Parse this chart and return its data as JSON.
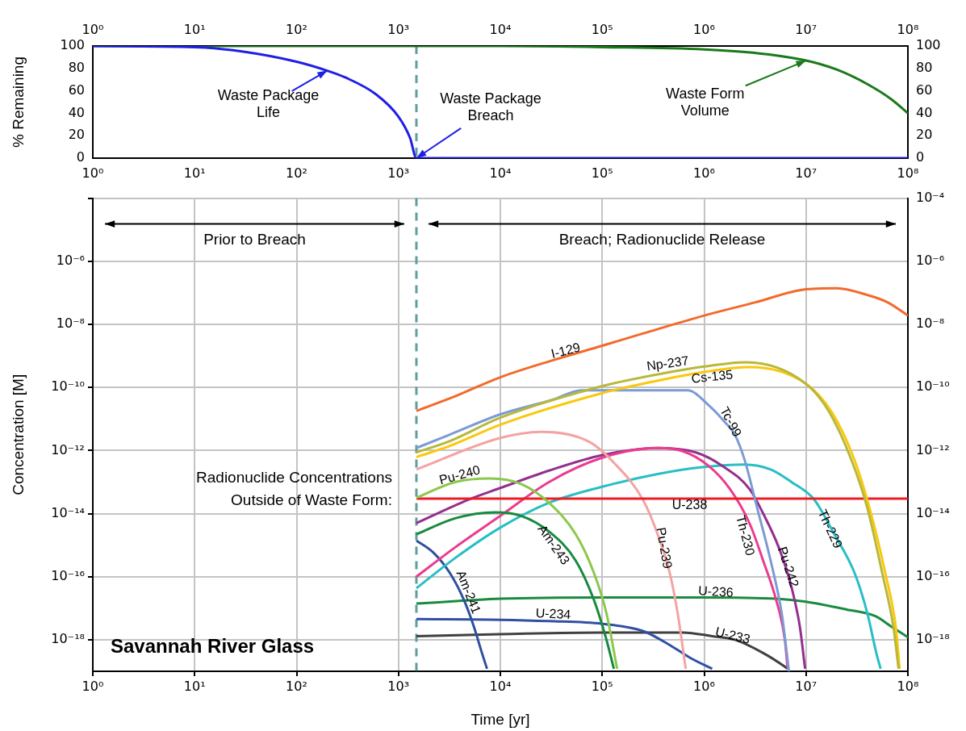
{
  "chart_data": [
    {
      "type": "line",
      "ylabel": "% Remaining",
      "log": "x",
      "grid": false,
      "legend": false,
      "marker": "none",
      "xlim": [
        1,
        100000000
      ],
      "xticks": [
        {
          "value": 1,
          "label": "10⁰"
        },
        {
          "value": 10,
          "label": "10¹"
        },
        {
          "value": 100,
          "label": "10²"
        },
        {
          "value": 1000,
          "label": "10³"
        },
        {
          "value": 10000,
          "label": "10⁴"
        },
        {
          "value": 100000,
          "label": "10⁵"
        },
        {
          "value": 1000000,
          "label": "10⁶"
        },
        {
          "value": 10000000,
          "label": "10⁷"
        },
        {
          "value": 100000000,
          "label": "10⁸"
        }
      ],
      "ylim": [
        0,
        100
      ],
      "yticks": [
        0,
        20,
        40,
        60,
        80,
        100
      ],
      "y2lim": [
        0,
        100
      ],
      "y2ticks": [
        0,
        20,
        40,
        60,
        80,
        100
      ],
      "series": [
        {
          "color": "#1f1fe6",
          "x": [
            1,
            10,
            30,
            100,
            200,
            300,
            600,
            1000,
            1300,
            1500,
            100000000
          ],
          "values": [
            100,
            99,
            95,
            86,
            78,
            72,
            57,
            37,
            18,
            0,
            0
          ]
        },
        {
          "color": "#1a7a1a",
          "x": [
            1,
            10000,
            100000,
            1000000,
            3000000,
            10000000,
            20000000,
            40000000,
            70000000,
            100000000
          ],
          "values": [
            100,
            100,
            99,
            97,
            94,
            87,
            79,
            66,
            52,
            40
          ]
        }
      ],
      "ref_lines": [
        {
          "axis": "x",
          "value": 1500,
          "color": "#5f9ea0",
          "line_style": "dashed"
        }
      ],
      "annotations": [
        {
          "text": "Waste Package Life",
          "x": 200,
          "y": 78
        },
        {
          "text": "Waste Package Breach",
          "x": 1500,
          "y": 0
        },
        {
          "text": "Waste Form Volume",
          "x": 10000000,
          "y": 87
        }
      ]
    },
    {
      "type": "line",
      "xlabel": "Time [yr]",
      "ylabel": "Concentration [M]",
      "log": "xy",
      "grid": true,
      "legend": false,
      "marker": "none",
      "xlim": [
        1,
        100000000
      ],
      "xticks": [
        {
          "value": 1,
          "label": "10⁰"
        },
        {
          "value": 10,
          "label": "10¹"
        },
        {
          "value": 100,
          "label": "10²"
        },
        {
          "value": 1000,
          "label": "10³"
        },
        {
          "value": 10000,
          "label": "10⁴"
        },
        {
          "value": 100000,
          "label": "10⁵"
        },
        {
          "value": 1000000,
          "label": "10⁶"
        },
        {
          "value": 10000000,
          "label": "10⁷"
        },
        {
          "value": 100000000,
          "label": "10⁸"
        }
      ],
      "ylim": [
        1e-19,
        0.0001
      ],
      "yticks": [
        {
          "value": 1e-18,
          "label": "10⁻¹⁸"
        },
        {
          "value": 1e-16,
          "label": "10⁻¹⁶"
        },
        {
          "value": 1e-14,
          "label": "10⁻¹⁴"
        },
        {
          "value": 1e-12,
          "label": "10⁻¹²"
        },
        {
          "value": 1e-10,
          "label": "10⁻¹⁰"
        },
        {
          "value": 1e-08,
          "label": "10⁻⁸"
        },
        {
          "value": 1e-06,
          "label": "10⁻⁶"
        },
        {
          "value": 0.0001,
          "label": "10⁻⁴"
        }
      ],
      "series": [
        {
          "name": "I-129",
          "color": "#f26a2c",
          "x": [
            1500,
            3200,
            10000,
            32000,
            100000,
            250000,
            1000000,
            3200000,
            10000000,
            20000000,
            40000000,
            63000000,
            100000000
          ],
          "values": [
            1.8e-11,
            4.5e-11,
            2.1e-10,
            7.1e-10,
            2.1e-09,
            5.1e-09,
            1.9e-08,
            5e-08,
            1.3e-07,
            1.4e-07,
            8.5e-08,
            5e-08,
            1.9e-08
          ]
        },
        {
          "name": "Np-237",
          "color": "#b8b83a",
          "x": [
            1500,
            3200,
            10000,
            100000,
            250000,
            1000000,
            2600000,
            10000000,
            17000000,
            28000000,
            40000000,
            56000000,
            72000000,
            81000000
          ],
          "values": [
            8.7e-13,
            2e-12,
            1.1e-11,
            1.1e-10,
            2.1e-10,
            4.6e-10,
            6.3e-10,
            1.3e-10,
            1.6e-11,
            4.9e-13,
            1.5e-14,
            1.3e-16,
            2.6e-18,
            1.2e-19
          ]
        },
        {
          "name": "Cs-135",
          "color": "#f9c80e",
          "x": [
            1500,
            3200,
            10000,
            100000,
            250000,
            1000000,
            2800000,
            10000000,
            18000000,
            30000000,
            42000000,
            60000000,
            76000000,
            83000000
          ],
          "values": [
            6.2e-13,
            1.4e-12,
            6.6e-12,
            6.6e-11,
            1.3e-10,
            3.1e-10,
            4.4e-10,
            1.3e-10,
            1.6e-11,
            4.9e-13,
            1.5e-14,
            1.3e-16,
            2.6e-18,
            1.2e-19
          ]
        },
        {
          "name": "Tc-99",
          "color": "#7b9bd4",
          "x": [
            1500,
            3200,
            10000,
            32000,
            63000,
            690000,
            1100000,
            1600000,
            2000000,
            2500000,
            3300000,
            4500000,
            5800000,
            6800000
          ],
          "values": [
            1.2e-12,
            3.2e-12,
            1.4e-11,
            4e-11,
            8.1e-11,
            8.1e-11,
            2.8e-11,
            7.9e-12,
            3.2e-12,
            5e-13,
            1.6e-14,
            3.2e-16,
            6.3e-18,
            1e-19
          ]
        },
        {
          "name": "Pu-240",
          "color": "#8cc84b",
          "x": [
            1500,
            3600,
            7900,
            16000,
            30000,
            55000,
            83000,
            110000,
            140000
          ],
          "values": [
            3.2e-14,
            1e-13,
            1.3e-13,
            8.7e-14,
            2.2e-14,
            2.2e-15,
            1.3e-16,
            6.9e-18,
            1.2e-19
          ]
        },
        {
          "name": "U-238",
          "color": "#ed1c24",
          "x": [
            1500,
            100000000
          ],
          "values": [
            3e-14,
            3e-14
          ]
        },
        {
          "name": "Am-243",
          "color": "#178a3e",
          "x": [
            1500,
            3600,
            8900,
            16000,
            30000,
            55000,
            83000,
            110000,
            130000
          ],
          "values": [
            2.2e-15,
            7.1e-15,
            1.1e-14,
            8.5e-15,
            2.7e-15,
            3.2e-16,
            1.8e-17,
            1e-18,
            1.2e-19
          ]
        },
        {
          "name": "Pu-239",
          "color": "#f4a3a3",
          "x": [
            1500,
            10000,
            25000,
            74000,
            130000,
            250000,
            350000,
            460000,
            550000,
            660000
          ],
          "values": [
            2.5e-13,
            2.5e-12,
            3.9e-12,
            1.9e-12,
            4.1e-13,
            2.8e-14,
            2.2e-15,
            1.3e-16,
            6.9e-18,
            1.2e-19
          ]
        },
        {
          "name": "Th-230",
          "color": "#ec3b8f",
          "x": [
            1500,
            3600,
            10000,
            30000,
            100000,
            350000,
            620000,
            1100000,
            1800000,
            2800000,
            3800000,
            5100000,
            6200000,
            6600000
          ],
          "values": [
            1e-16,
            8.5e-16,
            8.5e-15,
            1e-13,
            5.9e-13,
            1.2e-12,
            9.5e-13,
            3.3e-13,
            5.9e-14,
            4.8e-15,
            3.2e-16,
            1.8e-17,
            1e-18,
            1.2e-19
          ]
        },
        {
          "name": "Pu-242",
          "color": "#93308f",
          "x": [
            1500,
            4900,
            10000,
            30000,
            100000,
            350000,
            830000,
            1500000,
            2800000,
            3800000,
            5400000,
            7200000,
            8700000,
            9800000
          ],
          "values": [
            5e-15,
            2.8e-14,
            6.5e-14,
            2.3e-13,
            7.2e-13,
            1.2e-12,
            8.7e-13,
            3.3e-13,
            5.9e-14,
            1e-14,
            8.5e-16,
            4.7e-17,
            2.6e-18,
            1.2e-19
          ]
        },
        {
          "name": "Th-229",
          "color": "#28bec5",
          "x": [
            1500,
            3600,
            10000,
            30000,
            100000,
            350000,
            1000000,
            2500000,
            4500000,
            7200000,
            12000000,
            19000000,
            30000000,
            40000000,
            49000000,
            54000000
          ],
          "values": [
            4.3e-17,
            3.9e-16,
            3.6e-15,
            2.2e-14,
            7.1e-14,
            1.8e-13,
            3e-13,
            3.6e-13,
            2.5e-13,
            1e-13,
            2.8e-14,
            2.2e-15,
            1.3e-16,
            6.9e-18,
            3.8e-19,
            1.2e-19
          ]
        },
        {
          "name": "Am-241",
          "color": "#2f4f9f",
          "x": [
            1500,
            2200,
            3200,
            4400,
            5500,
            6600,
            7400
          ],
          "values": [
            1.4e-15,
            5.8e-16,
            1.3e-16,
            1.8e-17,
            2.6e-18,
            3.8e-19,
            1.2e-19
          ]
        },
        {
          "name": "U-236",
          "color": "#1a8a40",
          "x": [
            1500,
            10000,
            100000,
            1000000,
            5100000,
            10000000,
            25000000,
            48000000,
            69000000,
            100000000
          ],
          "values": [
            1.4e-17,
            2e-17,
            2.2e-17,
            2.2e-17,
            2e-17,
            1.6e-17,
            9.1e-18,
            5.6e-18,
            2.6e-18,
            1.2e-18
          ]
        },
        {
          "name": "U-234",
          "color": "#3150a5",
          "x": [
            1500,
            10000,
            30000,
            100000,
            250000,
            460000,
            740000,
            1200000
          ],
          "values": [
            4.5e-18,
            4.3e-18,
            3.9e-18,
            3.2e-18,
            1.9e-18,
            6.8e-19,
            2.6e-19,
            1.2e-19
          ]
        },
        {
          "name": "U-233",
          "color": "#404040",
          "x": [
            1500,
            10000,
            100000,
            620000,
            1200000,
            2000000,
            3800000,
            6200000,
            6600000
          ],
          "values": [
            1.3e-18,
            1.5e-18,
            1.7e-18,
            1.7e-18,
            1.3e-18,
            1e-18,
            3.8e-19,
            1.4e-19,
            1.2e-19
          ]
        }
      ],
      "ref_lines": [
        {
          "axis": "x",
          "value": 1500,
          "color": "#5f9ea0",
          "line_style": "dashed"
        }
      ],
      "annotations": [
        "Prior to Breach",
        "Breach; Radionuclide Release",
        "Radionuclide Concentrations Outside of Waste Form:",
        "Savannah River Glass"
      ]
    }
  ]
}
